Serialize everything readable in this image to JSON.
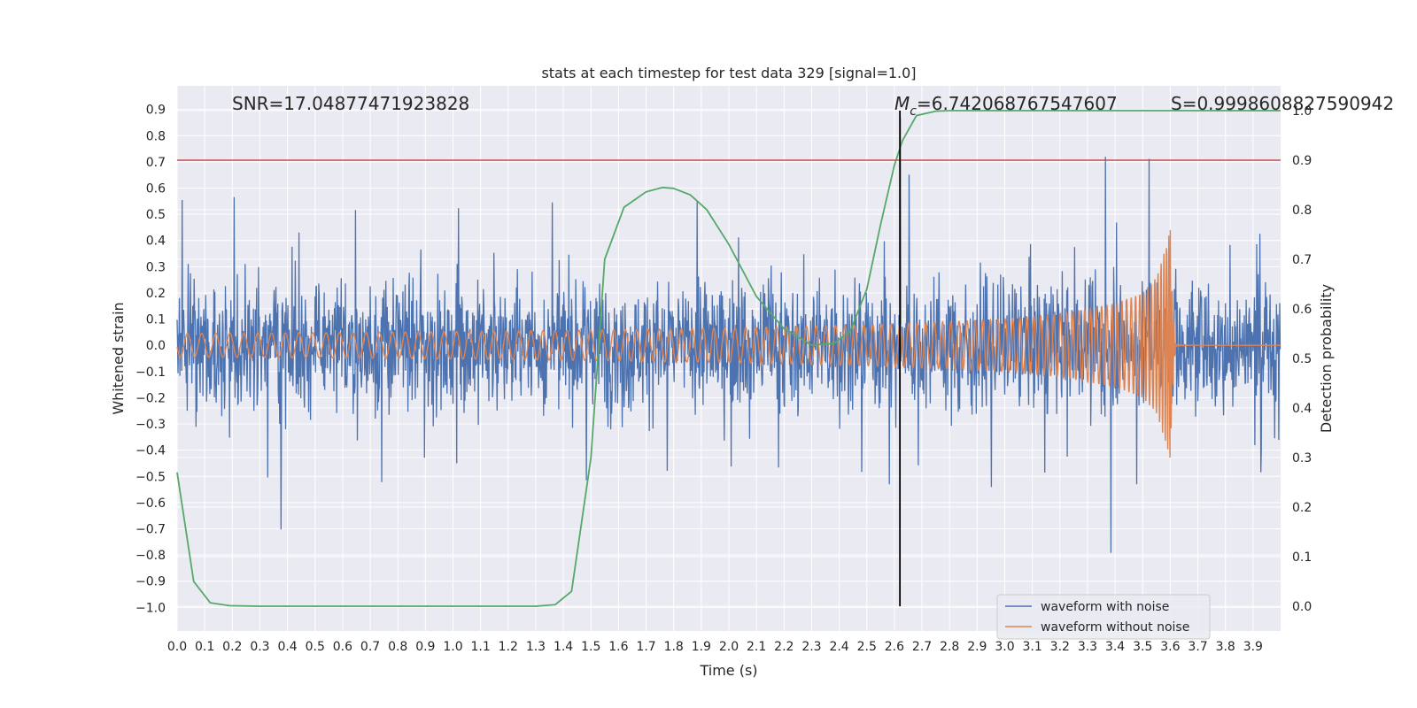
{
  "chart_data": {
    "type": "line",
    "title": "stats at each timestep for test data 329 [signal=1.0]",
    "xlabel": "Time (s)",
    "ylabel_left": "Whitened strain",
    "ylabel_right": "Detection probability",
    "xlim": [
      0.0,
      4.0
    ],
    "ylim_left": [
      -1.09,
      0.99
    ],
    "ylim_right": [
      -0.05,
      1.05
    ],
    "x_ticks": [
      "0.0",
      "0.1",
      "0.2",
      "0.3",
      "0.4",
      "0.5",
      "0.6",
      "0.7",
      "0.8",
      "0.9",
      "1.0",
      "1.1",
      "1.2",
      "1.3",
      "1.4",
      "1.5",
      "1.6",
      "1.7",
      "1.8",
      "1.9",
      "2.0",
      "2.1",
      "2.2",
      "2.3",
      "2.4",
      "2.5",
      "2.6",
      "2.7",
      "2.8",
      "2.9",
      "3.0",
      "3.1",
      "3.2",
      "3.3",
      "3.4",
      "3.5",
      "3.6",
      "3.7",
      "3.8",
      "3.9"
    ],
    "y_ticks_left": [
      "0.9",
      "0.8",
      "0.7",
      "0.6",
      "0.5",
      "0.4",
      "0.3",
      "0.2",
      "0.1",
      "0.0",
      "−0.1",
      "−0.2",
      "−0.3",
      "−0.4",
      "−0.5",
      "−0.6",
      "−0.7",
      "−0.8",
      "−0.9",
      "−1.0"
    ],
    "y_ticks_right": [
      "1.0",
      "0.9",
      "0.8",
      "0.7",
      "0.6",
      "0.5",
      "0.4",
      "0.3",
      "0.2",
      "0.1",
      "0.0"
    ],
    "grid": true,
    "legend_position": "lower-right",
    "annotations": {
      "snr": "SNR=17.04877471923828",
      "mc_symbol": "M",
      "mc_subscript": "c",
      "mc_value": "=6.742068767547607",
      "s_value": "S=0.9998608827590942"
    },
    "threshold_line": {
      "axis": "right",
      "value": 0.9,
      "color": "#c44e52"
    },
    "merger_line": {
      "x": 2.62,
      "color": "#000000"
    },
    "series": [
      {
        "name": "waveform with noise",
        "color": "#4c72b0",
        "axis": "left",
        "description": "dense noisy whitened strain, amplitude roughly ±0.5 with spikes to ~0.9 and ~-1.0"
      },
      {
        "name": "waveform without noise",
        "color": "#dd8452",
        "axis": "left",
        "description": "chirp signal ending at merger ~3.6 s",
        "points_envelope": {
          "x": [
            0.0,
            0.5,
            1.0,
            1.5,
            2.0,
            2.5,
            2.8,
            3.0,
            3.2,
            3.4,
            3.5,
            3.55,
            3.58,
            3.6,
            3.62,
            4.0
          ],
          "amplitude": [
            0.045,
            0.048,
            0.052,
            0.058,
            0.066,
            0.078,
            0.09,
            0.1,
            0.12,
            0.16,
            0.2,
            0.26,
            0.36,
            0.44,
            0.01,
            0.005
          ]
        }
      },
      {
        "name": "",
        "color": "#55a868",
        "axis": "right",
        "x": [
          0.0,
          0.06,
          0.12,
          0.19,
          0.3,
          0.6,
          1.0,
          1.3,
          1.37,
          1.43,
          1.5,
          1.55,
          1.62,
          1.7,
          1.76,
          1.8,
          1.86,
          1.92,
          2.0,
          2.1,
          2.2,
          2.3,
          2.38,
          2.44,
          2.5,
          2.55,
          2.6,
          2.63,
          2.68,
          2.75,
          2.8,
          3.0,
          3.5,
          4.0
        ],
        "values": [
          0.27,
          0.05,
          0.007,
          0.001,
          0.0,
          0.0,
          0.0,
          0.0,
          0.003,
          0.03,
          0.3,
          0.7,
          0.805,
          0.836,
          0.845,
          0.843,
          0.83,
          0.8,
          0.73,
          0.625,
          0.56,
          0.527,
          0.53,
          0.555,
          0.64,
          0.77,
          0.89,
          0.94,
          0.99,
          0.999,
          1.0,
          1.0,
          1.0,
          1.0
        ]
      }
    ]
  }
}
